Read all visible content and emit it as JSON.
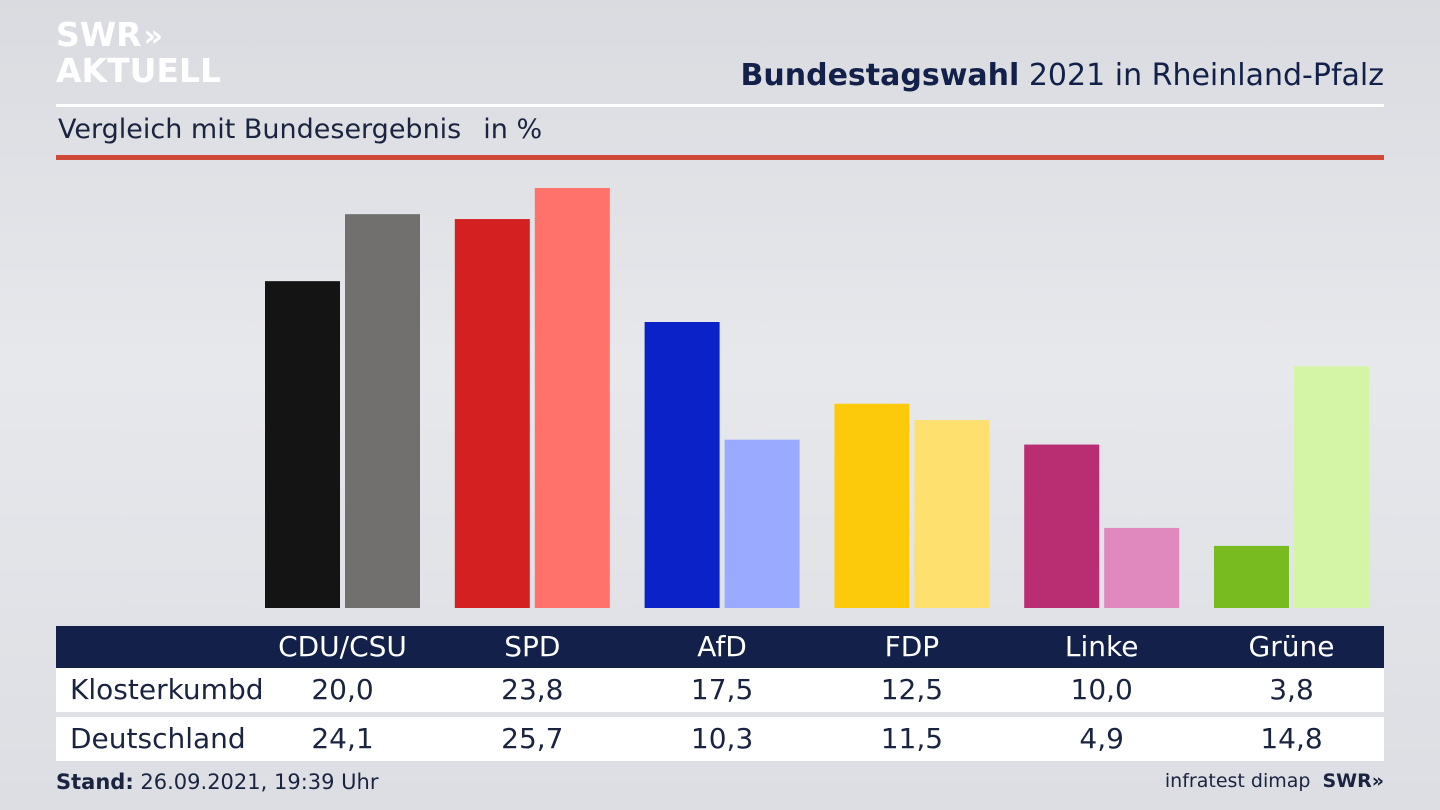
{
  "brand": {
    "line1": "SWR",
    "line2": "AKTUELL",
    "chevrons": "»"
  },
  "header": {
    "title_bold": "Bundestagswahl",
    "title_rest": " 2021 in Rheinland-Pfalz",
    "subtitle": "Vergleich mit Bundesergebnis",
    "unit": "in %"
  },
  "table": {
    "rows": [
      {
        "label": "Klosterkumbd",
        "values": [
          "20,0",
          "23,8",
          "17,5",
          "12,5",
          "10,0",
          "3,8"
        ]
      },
      {
        "label": "Deutschland",
        "values": [
          "24,1",
          "25,7",
          "10,3",
          "11,5",
          "4,9",
          "14,8"
        ]
      }
    ]
  },
  "footer": {
    "stand_label": "Stand:",
    "stand_value": " 26.09.2021, 19:39 Uhr",
    "source": "infratest dimap",
    "source_brand": "SWR»"
  },
  "chart_data": {
    "type": "bar",
    "categories": [
      "CDU/CSU",
      "SPD",
      "AfD",
      "FDP",
      "Linke",
      "Grüne"
    ],
    "series": [
      {
        "name": "Klosterkumbd",
        "values": [
          20.0,
          23.8,
          17.5,
          12.5,
          10.0,
          3.8
        ]
      },
      {
        "name": "Deutschland",
        "values": [
          24.1,
          25.7,
          10.3,
          11.5,
          4.9,
          14.8
        ]
      }
    ],
    "colors": {
      "local": [
        "#141414",
        "#d42020",
        "#0a22c8",
        "#fcca0a",
        "#b92d73",
        "#78bb20"
      ],
      "national": [
        "#71706e",
        "#ff726c",
        "#9aabff",
        "#fde06e",
        "#df89bf",
        "#d4f5a6"
      ]
    },
    "title": "Bundestagswahl 2021 in Rheinland-Pfalz",
    "ylabel": "in %",
    "ylim": [
      0,
      25.7
    ],
    "grid": false
  }
}
